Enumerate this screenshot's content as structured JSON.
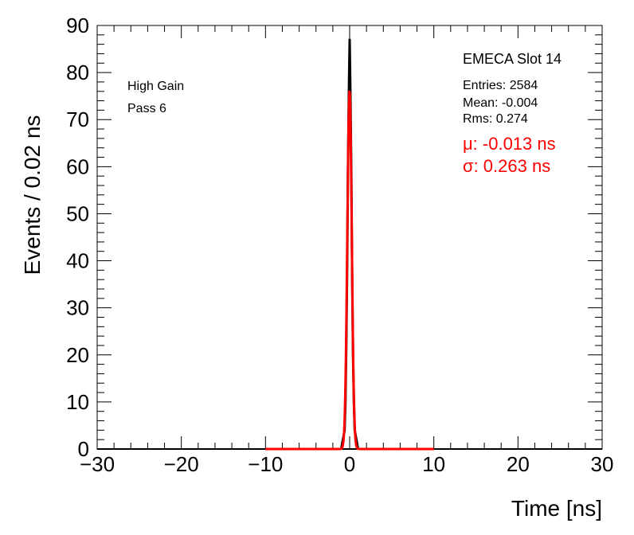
{
  "chart_data": {
    "type": "histogram",
    "xlabel": "Time [ns]",
    "ylabel": "Events / 0.02 ns",
    "xlim": [
      -30,
      30
    ],
    "ylim": [
      0,
      90
    ],
    "xticks": [
      "−30",
      "−20",
      "−10",
      "0",
      "10",
      "20",
      "30"
    ],
    "xtick_values": [
      -30,
      -20,
      -10,
      0,
      10,
      20,
      30
    ],
    "yticks": [
      "0",
      "10",
      "20",
      "30",
      "40",
      "50",
      "60",
      "70",
      "80",
      "90"
    ],
    "ytick_values": [
      0,
      10,
      20,
      30,
      40,
      50,
      60,
      70,
      80,
      90
    ],
    "grid": false,
    "series": [
      {
        "color": "#000000",
        "style": "histogram",
        "x": [
          -1.0,
          -0.8,
          -0.6,
          -0.5,
          -0.4,
          -0.3,
          -0.2,
          -0.1,
          0.0,
          0.1,
          0.2,
          0.3,
          0.4,
          0.5,
          0.6,
          0.8,
          1.0
        ],
        "values": [
          0,
          2,
          4,
          10,
          22,
          38,
          60,
          75,
          87,
          74,
          58,
          36,
          20,
          10,
          4,
          2,
          0
        ]
      },
      {
        "color": "#ff0000",
        "style": "fit",
        "mean": -0.013,
        "sigma": 0.263,
        "amplitude": 76,
        "range": [
          -10,
          10
        ]
      }
    ],
    "annotations": {
      "left_line1": "High Gain",
      "left_line2": "Pass 6",
      "stats_title": "EMECA Slot 14",
      "entries": "Entries: 2584",
      "mean": "Mean: -0.004",
      "rms": "Rms: 0.274",
      "fit_mu": "μ: -0.013 ns",
      "fit_sigma": "σ: 0.263 ns"
    },
    "colors": {
      "data": "#000000",
      "fit": "#ff0000"
    }
  }
}
